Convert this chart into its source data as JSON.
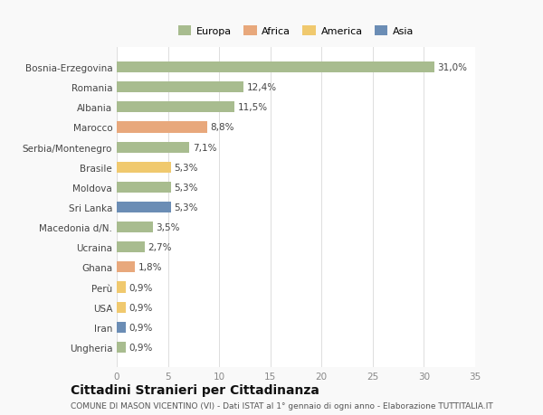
{
  "categories": [
    "Bosnia-Erzegovina",
    "Romania",
    "Albania",
    "Marocco",
    "Serbia/Montenegro",
    "Brasile",
    "Moldova",
    "Sri Lanka",
    "Macedonia d/N.",
    "Ucraina",
    "Ghana",
    "Perù",
    "USA",
    "Iran",
    "Ungheria"
  ],
  "values": [
    31.0,
    12.4,
    11.5,
    8.8,
    7.1,
    5.3,
    5.3,
    5.3,
    3.5,
    2.7,
    1.8,
    0.9,
    0.9,
    0.9,
    0.9
  ],
  "labels": [
    "31,0%",
    "12,4%",
    "11,5%",
    "8,8%",
    "7,1%",
    "5,3%",
    "5,3%",
    "5,3%",
    "3,5%",
    "2,7%",
    "1,8%",
    "0,9%",
    "0,9%",
    "0,9%",
    "0,9%"
  ],
  "colors": [
    "#a8bc8f",
    "#a8bc8f",
    "#a8bc8f",
    "#e8a87c",
    "#a8bc8f",
    "#f0c96e",
    "#a8bc8f",
    "#6b8db5",
    "#a8bc8f",
    "#a8bc8f",
    "#e8a87c",
    "#f0c96e",
    "#f0c96e",
    "#6b8db5",
    "#a8bc8f"
  ],
  "legend_labels": [
    "Europa",
    "Africa",
    "America",
    "Asia"
  ],
  "legend_colors": [
    "#a8bc8f",
    "#e8a87c",
    "#f0c96e",
    "#6b8db5"
  ],
  "xlim": [
    0,
    35
  ],
  "xticks": [
    0,
    5,
    10,
    15,
    20,
    25,
    30,
    35
  ],
  "title": "Cittadini Stranieri per Cittadinanza",
  "subtitle": "COMUNE DI MASON VICENTINO (VI) - Dati ISTAT al 1° gennaio di ogni anno - Elaborazione TUTTITALIA.IT",
  "background_color": "#f9f9f9",
  "plot_background": "#ffffff",
  "bar_height": 0.55,
  "label_fontsize": 7.5,
  "tick_fontsize": 7.5,
  "title_fontsize": 10,
  "subtitle_fontsize": 6.5
}
